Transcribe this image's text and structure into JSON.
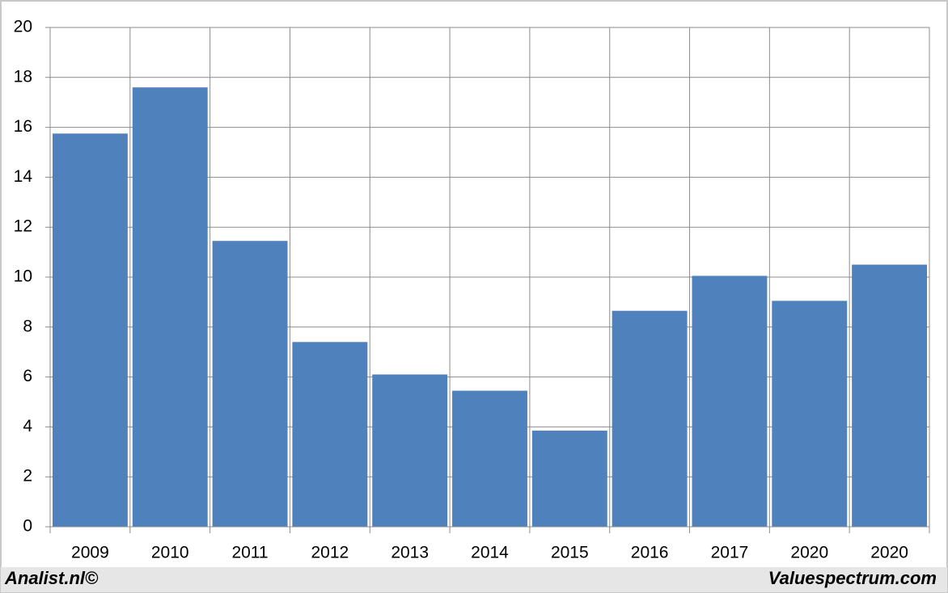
{
  "chart_data": {
    "type": "bar",
    "categories": [
      "2009",
      "2010",
      "2011",
      "2012",
      "2013",
      "2014",
      "2015",
      "2016",
      "2017",
      "2020",
      "2020"
    ],
    "values": [
      15.75,
      17.6,
      11.45,
      7.4,
      6.1,
      5.45,
      3.85,
      8.65,
      10.05,
      9.05,
      10.5
    ],
    "color": "#4f81bd",
    "ylim": [
      0,
      20
    ],
    "yticks": [
      0,
      2,
      4,
      6,
      8,
      10,
      12,
      14,
      16,
      18,
      20
    ],
    "grid": true
  },
  "footer": {
    "left": "Analist.nl©",
    "right": "Valuespectrum.com"
  }
}
